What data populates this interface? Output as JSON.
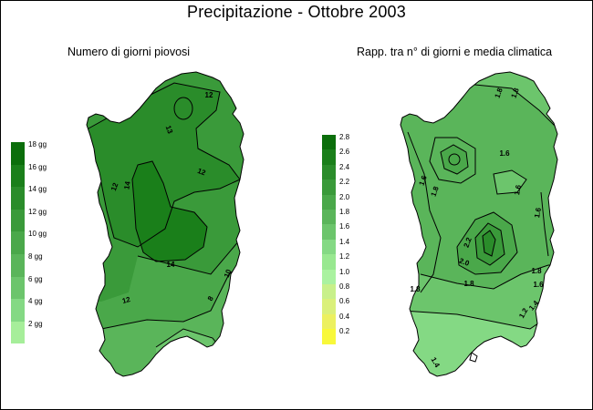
{
  "title": "Precipitazione - Ottobre 2003",
  "maps": [
    {
      "subtitle": "Numero di giorni piovosi",
      "legend": {
        "entries": [
          {
            "label": "18 gg",
            "color": "#0b6e0b"
          },
          {
            "label": "16 gg",
            "color": "#1a7f1a"
          },
          {
            "label": "14 gg",
            "color": "#2a8c2a"
          },
          {
            "label": "12 gg",
            "color": "#3a9a3a"
          },
          {
            "label": "10 gg",
            "color": "#4aa84a"
          },
          {
            "label": "8 gg",
            "color": "#5ab55a"
          },
          {
            "label": "6 gg",
            "color": "#6cc56c"
          },
          {
            "label": "4 gg",
            "color": "#84d984"
          },
          {
            "label": "2 gg",
            "color": "#a6ee9a"
          }
        ]
      },
      "contour_labels": [
        "12",
        "13",
        "12",
        "14",
        "12",
        "14",
        "10",
        "8",
        "12"
      ]
    },
    {
      "subtitle": "Rapp. tra n° di giorni e media climatica",
      "legend": {
        "entries": [
          {
            "label": "2.8",
            "color": "#0b6e0b"
          },
          {
            "label": "2.6",
            "color": "#1a7f1a"
          },
          {
            "label": "2.4",
            "color": "#2a8c2a"
          },
          {
            "label": "2.2",
            "color": "#3a9a3a"
          },
          {
            "label": "2.0",
            "color": "#4aa84a"
          },
          {
            "label": "1.8",
            "color": "#5ab55a"
          },
          {
            "label": "1.6",
            "color": "#6cc56c"
          },
          {
            "label": "1.4",
            "color": "#84d984"
          },
          {
            "label": "1.2",
            "color": "#98e890"
          },
          {
            "label": "1.0",
            "color": "#aaf2a0"
          },
          {
            "label": "0.8",
            "color": "#c8f08a"
          },
          {
            "label": "0.6",
            "color": "#daf07a"
          },
          {
            "label": "0.4",
            "color": "#ecf060"
          },
          {
            "label": "0.2",
            "color": "#f8f83a"
          }
        ]
      },
      "contour_labels": [
        "1.8",
        "1.8",
        "1.6",
        "1.6",
        "1.6",
        "1.8",
        "1.6",
        "2.2",
        "2.0",
        "1.8",
        "1.8",
        "1.8",
        "1.6",
        "1.4",
        "1.2",
        "1.4"
      ]
    }
  ]
}
